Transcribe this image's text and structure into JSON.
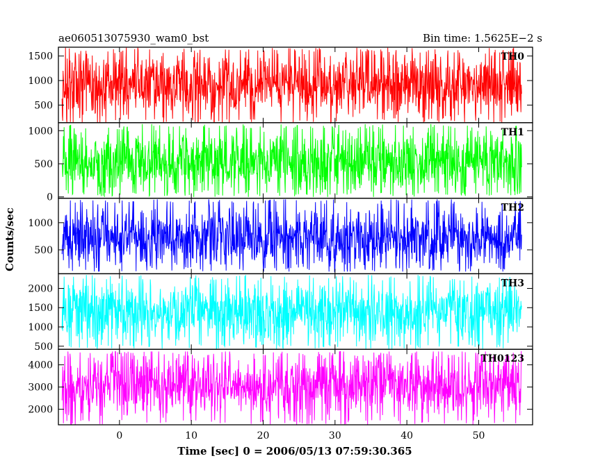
{
  "chart_data": {
    "type": "line",
    "title_left": "ae060513075930_wam0_bst",
    "title_right": "Bin time: 1.5625E−2 s",
    "xlabel": "Time [sec] 0 = 2006/05/13 07:59:30.365",
    "ylabel": "Counts/sec",
    "xlim": [
      -8.5,
      57.5
    ],
    "x_range_data": [
      -8,
      56
    ],
    "x_ticks": [
      0,
      10,
      20,
      30,
      40,
      50
    ],
    "grid": false,
    "panels": [
      {
        "name": "TH0",
        "color": "#ff0000",
        "ylim": [
          140,
          1680
        ],
        "y_ticks": [
          500,
          1000,
          1500
        ],
        "mean": 900,
        "spread": 330,
        "min": 140,
        "max": 1670
      },
      {
        "name": "TH1",
        "color": "#00ff00",
        "ylim": [
          -20,
          1120
        ],
        "y_ticks": [
          0,
          500,
          1000
        ],
        "mean": 520,
        "spread": 230,
        "min": 0,
        "max": 1100
      },
      {
        "name": "TH2",
        "color": "#0000ff",
        "ylim": [
          60,
          1450
        ],
        "y_ticks": [
          500,
          1000
        ],
        "mean": 720,
        "spread": 270,
        "min": 100,
        "max": 1430
      },
      {
        "name": "TH3",
        "color": "#00ffff",
        "ylim": [
          420,
          2380
        ],
        "y_ticks": [
          500,
          1000,
          1500,
          2000
        ],
        "mean": 1420,
        "spread": 400,
        "min": 430,
        "max": 2350
      },
      {
        "name": "TH0123",
        "color": "#ff00ff",
        "ylim": [
          1300,
          4700
        ],
        "y_ticks": [
          2000,
          3000,
          4000
        ],
        "mean": 3050,
        "spread": 720,
        "min": 1300,
        "max": 4600
      }
    ]
  }
}
